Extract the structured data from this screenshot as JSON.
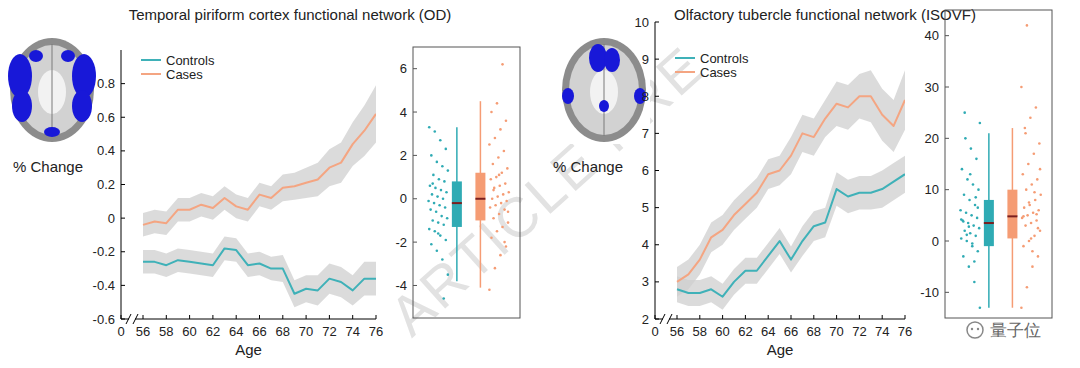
{
  "chart_data": [
    {
      "type": "line",
      "title": "Temporal piriform cortex functional network (OD)",
      "y_label": "% Change",
      "x_label": "Age",
      "x": [
        56,
        57,
        58,
        59,
        60,
        61,
        62,
        63,
        64,
        65,
        66,
        67,
        68,
        69,
        70,
        71,
        72,
        73,
        74,
        75,
        76
      ],
      "xlim": [
        0,
        76
      ],
      "xticks": [
        0,
        56,
        58,
        60,
        62,
        64,
        66,
        68,
        70,
        72,
        74,
        76
      ],
      "ylim": [
        -0.6,
        1.0
      ],
      "yticks": [
        -0.6,
        -0.4,
        -0.2,
        0,
        0.2,
        0.4,
        0.6,
        0.8
      ],
      "legend": "upper left",
      "series": [
        {
          "name": "Controls",
          "color": "#3fb1b8",
          "values": [
            -0.26,
            -0.26,
            -0.28,
            -0.25,
            -0.26,
            -0.27,
            -0.28,
            -0.18,
            -0.19,
            -0.28,
            -0.27,
            -0.3,
            -0.3,
            -0.45,
            -0.42,
            -0.43,
            -0.36,
            -0.38,
            -0.43,
            -0.36,
            -0.36
          ],
          "lower": [
            -0.33,
            -0.33,
            -0.35,
            -0.32,
            -0.33,
            -0.34,
            -0.35,
            -0.25,
            -0.26,
            -0.35,
            -0.34,
            -0.37,
            -0.38,
            -0.53,
            -0.5,
            -0.52,
            -0.45,
            -0.47,
            -0.52,
            -0.46,
            -0.46
          ],
          "upper": [
            -0.19,
            -0.19,
            -0.21,
            -0.18,
            -0.19,
            -0.2,
            -0.21,
            -0.11,
            -0.12,
            -0.21,
            -0.2,
            -0.23,
            -0.22,
            -0.37,
            -0.34,
            -0.34,
            -0.27,
            -0.29,
            -0.34,
            -0.26,
            -0.26
          ]
        },
        {
          "name": "Cases",
          "color": "#f4a582",
          "values": [
            -0.04,
            -0.02,
            -0.03,
            0.05,
            0.05,
            0.08,
            0.06,
            0.12,
            0.07,
            0.05,
            0.14,
            0.12,
            0.18,
            0.19,
            0.21,
            0.23,
            0.3,
            0.33,
            0.44,
            0.52,
            0.62
          ],
          "lower": [
            -0.11,
            -0.09,
            -0.1,
            -0.02,
            -0.02,
            0.01,
            -0.01,
            0.05,
            0.0,
            -0.02,
            0.07,
            0.05,
            0.1,
            0.11,
            0.12,
            0.13,
            0.19,
            0.21,
            0.31,
            0.37,
            0.45
          ],
          "upper": [
            0.03,
            0.05,
            0.04,
            0.12,
            0.12,
            0.15,
            0.13,
            0.19,
            0.14,
            0.12,
            0.21,
            0.19,
            0.26,
            0.27,
            0.3,
            0.33,
            0.41,
            0.45,
            0.57,
            0.67,
            0.79
          ]
        }
      ]
    },
    {
      "type": "box",
      "ylim": [
        -5.5,
        7
      ],
      "yticks": [
        -4,
        -2,
        0,
        2,
        4,
        6
      ],
      "series": [
        {
          "color": "#2fabb4",
          "whisker_low": -3.8,
          "q1": -1.3,
          "median": -0.2,
          "q3": 0.8,
          "whisker_high": 3.3,
          "points": [
            -3.5,
            -2.8,
            -2.4,
            -2.1,
            -1.9,
            -1.7,
            -1.5,
            -1.4,
            -1.2,
            -1.1,
            -1.0,
            -0.9,
            -0.8,
            -0.6,
            -0.5,
            -0.4,
            -0.3,
            -0.2,
            -0.1,
            0.0,
            0.1,
            0.2,
            0.3,
            0.4,
            0.5,
            0.6,
            0.8,
            0.9,
            1.1,
            1.3,
            1.5,
            1.7,
            2.0,
            2.3,
            2.7,
            3.1,
            3.3,
            -4.6,
            -1.6,
            0.7
          ]
        },
        {
          "color": "#f59c74",
          "whisker_low": -4.1,
          "q1": -1.0,
          "median": 0.0,
          "q3": 1.2,
          "whisker_high": 4.5,
          "points": [
            -4.2,
            -3.2,
            -2.6,
            -2.2,
            -1.8,
            -1.5,
            -1.3,
            -1.1,
            -0.9,
            -0.7,
            -0.5,
            -0.4,
            -0.3,
            -0.2,
            -0.1,
            0.0,
            0.1,
            0.2,
            0.3,
            0.5,
            0.6,
            0.7,
            0.9,
            1.0,
            1.2,
            1.4,
            1.6,
            1.9,
            2.2,
            2.5,
            2.8,
            3.2,
            3.6,
            4.0,
            4.4,
            6.2,
            -0.6,
            0.4,
            1.1,
            -2.0
          ]
        }
      ]
    },
    {
      "type": "line",
      "title": "Olfactory tubercle functional network (ISOVF)",
      "y_label": "% Change",
      "x_label": "Age",
      "x": [
        56,
        57,
        58,
        59,
        60,
        61,
        62,
        63,
        64,
        65,
        66,
        67,
        68,
        69,
        70,
        71,
        72,
        73,
        74,
        75,
        76
      ],
      "xlim": [
        0,
        76
      ],
      "xticks": [
        0,
        56,
        58,
        60,
        62,
        64,
        66,
        68,
        70,
        72,
        74,
        76
      ],
      "ylim": [
        2,
        10
      ],
      "yticks": [
        2,
        3,
        4,
        5,
        6,
        7,
        8,
        9,
        10
      ],
      "legend": "upper left",
      "series": [
        {
          "name": "Controls",
          "color": "#3fb1b8",
          "values": [
            2.8,
            2.7,
            2.7,
            2.8,
            2.6,
            3.0,
            3.3,
            3.3,
            3.7,
            4.1,
            3.6,
            4.1,
            4.5,
            4.6,
            5.5,
            5.3,
            5.4,
            5.4,
            5.5,
            5.7,
            5.9
          ],
          "lower": [
            2.45,
            2.35,
            2.35,
            2.45,
            2.25,
            2.65,
            2.95,
            2.95,
            3.35,
            3.75,
            3.25,
            3.7,
            4.1,
            4.2,
            5.05,
            4.85,
            4.95,
            4.95,
            5.0,
            5.2,
            5.4
          ],
          "upper": [
            3.15,
            3.05,
            3.05,
            3.15,
            2.95,
            3.35,
            3.65,
            3.65,
            4.05,
            4.45,
            3.95,
            4.5,
            4.9,
            5.0,
            5.95,
            5.75,
            5.85,
            5.85,
            6.0,
            6.2,
            6.4
          ]
        },
        {
          "name": "Cases",
          "color": "#f4a582",
          "values": [
            3.0,
            3.2,
            3.6,
            4.2,
            4.4,
            4.8,
            5.1,
            5.4,
            5.9,
            6.0,
            6.4,
            7.0,
            6.9,
            7.4,
            7.8,
            7.7,
            8.0,
            8.0,
            7.5,
            7.2,
            7.9
          ],
          "lower": [
            2.6,
            2.8,
            3.2,
            3.8,
            4.0,
            4.4,
            4.7,
            5.0,
            5.5,
            5.6,
            5.9,
            6.5,
            6.4,
            6.9,
            7.2,
            7.1,
            7.4,
            7.3,
            6.8,
            6.5,
            7.1
          ],
          "upper": [
            3.4,
            3.6,
            4.0,
            4.6,
            4.8,
            5.2,
            5.5,
            5.8,
            6.3,
            6.4,
            6.9,
            7.5,
            7.4,
            7.9,
            8.4,
            8.3,
            8.6,
            8.7,
            8.2,
            7.9,
            8.7
          ]
        }
      ]
    },
    {
      "type": "box",
      "ylim": [
        -15,
        45
      ],
      "yticks": [
        -10,
        0,
        10,
        20,
        30,
        40
      ],
      "series": [
        {
          "color": "#2fabb4",
          "whisker_low": -13,
          "q1": -1,
          "median": 3.5,
          "q3": 8,
          "whisker_high": 21,
          "points": [
            -13,
            -8,
            -5,
            -3,
            -2,
            -1,
            0,
            0.5,
            1,
            1.5,
            2,
            2.5,
            3,
            3.5,
            4,
            4.5,
            5,
            5.5,
            6,
            7,
            8,
            9,
            10,
            11,
            12,
            14,
            16,
            18,
            20,
            23,
            -4,
            2.8,
            3.8,
            6.5,
            -0.5,
            1.2,
            4.2,
            8.5,
            13,
            25
          ]
        },
        {
          "color": "#f59c74",
          "whisker_low": -13,
          "q1": 0.5,
          "median": 4.8,
          "q3": 10,
          "whisker_high": 22,
          "points": [
            -13,
            -9,
            -5,
            -3,
            -1,
            0,
            1,
            2,
            3,
            3.5,
            4,
            4.5,
            5,
            5.5,
            6,
            6.5,
            7,
            8,
            9,
            10,
            11,
            12,
            13,
            15,
            17,
            19,
            22,
            24,
            26,
            30,
            42,
            -2,
            2.5,
            4.8,
            7.5,
            9.5,
            14,
            21,
            0.5,
            5.2
          ]
        }
      ]
    }
  ],
  "watermarks": [
    "ARTICLE PRE",
    "量子位"
  ]
}
